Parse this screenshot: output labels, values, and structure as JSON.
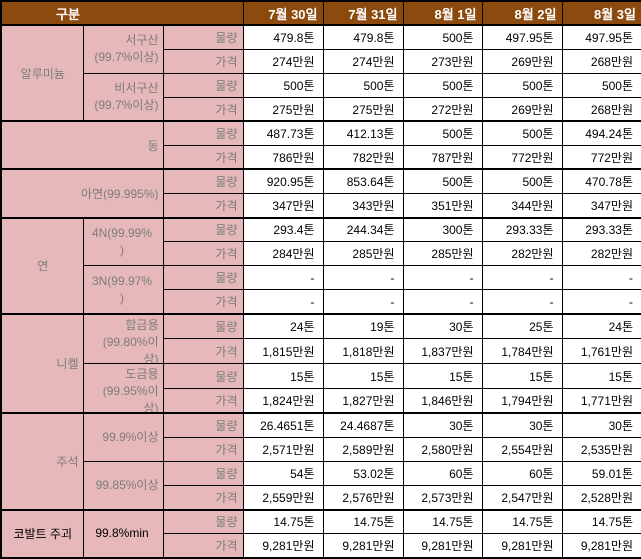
{
  "chart_data": {
    "type": "table",
    "corner_label": "구분",
    "date_columns": [
      "7월 30일",
      "7월 31일",
      "8월 1일",
      "8월 2일",
      "8월 3일"
    ],
    "row_kinds": {
      "qty": "물량",
      "price": "가격"
    },
    "units": {
      "qty": "톤",
      "price": "만원"
    },
    "colors": {
      "header_bg": "#8C4A0E",
      "header_text": "#FFFFFF",
      "label_bg": "#E6B8B9",
      "label_text": "#7C7C7C",
      "value_text": "#000000",
      "border": "#000000"
    },
    "groups": [
      {
        "metal": "알루미늄",
        "align": "center",
        "merged": false,
        "dark": false,
        "subs": [
          {
            "grade_lines": [
              "서구산",
              "(99.7%이상)"
            ],
            "align": "right",
            "valign": "middle",
            "qty": [
              "479.8톤",
              "479.8톤",
              "500톤",
              "497.95톤",
              "497.95톤"
            ],
            "price": [
              "274만원",
              "274만원",
              "273만원",
              "269만원",
              "268만원"
            ]
          },
          {
            "grade_lines": [
              "비서구산",
              "(99.7%이상)"
            ],
            "align": "right",
            "valign": "middle",
            "qty": [
              "500톤",
              "500톤",
              "500톤",
              "500톤",
              "500톤"
            ],
            "price": [
              "275만원",
              "275만원",
              "272만원",
              "269만원",
              "268만원"
            ]
          }
        ]
      },
      {
        "metal": "동",
        "align": "right",
        "merged": true,
        "dark": false,
        "subs": [
          {
            "grade_lines": [],
            "align": "right",
            "valign": "middle",
            "qty": [
              "487.73톤",
              "412.13톤",
              "500톤",
              "500톤",
              "494.24톤"
            ],
            "price": [
              "786만원",
              "782만원",
              "787만원",
              "772만원",
              "772만원"
            ]
          }
        ]
      },
      {
        "metal": "아연(99.995%)",
        "align": "right",
        "merged": true,
        "dark": false,
        "subs": [
          {
            "grade_lines": [],
            "align": "right",
            "valign": "middle",
            "qty": [
              "920.95톤",
              "853.64톤",
              "500톤",
              "500톤",
              "470.78톤"
            ],
            "price": [
              "347만원",
              "343만원",
              "351만원",
              "344만원",
              "347만원"
            ]
          }
        ]
      },
      {
        "metal": "연",
        "align": "center",
        "merged": false,
        "dark": false,
        "subs": [
          {
            "grade_lines": [
              "4N(99.99%",
              ")"
            ],
            "align": "center",
            "valign": "middle",
            "qty": [
              "293.4톤",
              "244.34톤",
              "300톤",
              "293.33톤",
              "293.33톤"
            ],
            "price": [
              "284만원",
              "285만원",
              "285만원",
              "282만원",
              "282만원"
            ]
          },
          {
            "grade_lines": [
              "3N(99.97%",
              ")"
            ],
            "align": "center",
            "valign": "middle",
            "qty": [
              "-",
              "-",
              "-",
              "-",
              "-"
            ],
            "price": [
              "-",
              "-",
              "-",
              "-",
              "-"
            ]
          }
        ]
      },
      {
        "metal": "니켈",
        "align": "right",
        "merged": false,
        "dark": false,
        "subs": [
          {
            "grade_lines": [
              "합금용",
              "(99.80%이",
              "상)"
            ],
            "align": "right",
            "valign": "top",
            "qty": [
              "24톤",
              "19톤",
              "30톤",
              "25톤",
              "24톤"
            ],
            "price": [
              "1,815만원",
              "1,818만원",
              "1,837만원",
              "1,784만원",
              "1,761만원"
            ]
          },
          {
            "grade_lines": [
              "도금용",
              "(99.95%이",
              "상)"
            ],
            "align": "right",
            "valign": "top",
            "qty": [
              "15톤",
              "15톤",
              "15톤",
              "15톤",
              "15톤"
            ],
            "price": [
              "1,824만원",
              "1,827만원",
              "1,846만원",
              "1,794만원",
              "1,771만원"
            ]
          }
        ]
      },
      {
        "metal": "주석",
        "align": "right",
        "merged": false,
        "dark": false,
        "subs": [
          {
            "grade_lines": [
              "99.9%이상"
            ],
            "align": "right",
            "valign": "middle",
            "qty": [
              "26.4651톤",
              "24.4687톤",
              "30톤",
              "30톤",
              "30톤"
            ],
            "price": [
              "2,571만원",
              "2,589만원",
              "2,580만원",
              "2,554만원",
              "2,535만원"
            ]
          },
          {
            "grade_lines": [
              "99.85%이상"
            ],
            "align": "right",
            "valign": "middle",
            "qty": [
              "54톤",
              "53.02톤",
              "60톤",
              "60톤",
              "59.01톤"
            ],
            "price": [
              "2,559만원",
              "2,576만원",
              "2,573만원",
              "2,547만원",
              "2,528만원"
            ]
          }
        ]
      },
      {
        "metal": "코발트 주괴",
        "align": "center",
        "merged": false,
        "dark": true,
        "subs": [
          {
            "grade_lines": [
              "99.8%min"
            ],
            "align": "center",
            "valign": "middle",
            "qty": [
              "14.75톤",
              "14.75톤",
              "14.75톤",
              "14.75톤",
              "14.75톤"
            ],
            "price": [
              "9,281만원",
              "9,281만원",
              "9,281만원",
              "9,281만원",
              "9,281만원"
            ]
          }
        ]
      }
    ]
  }
}
